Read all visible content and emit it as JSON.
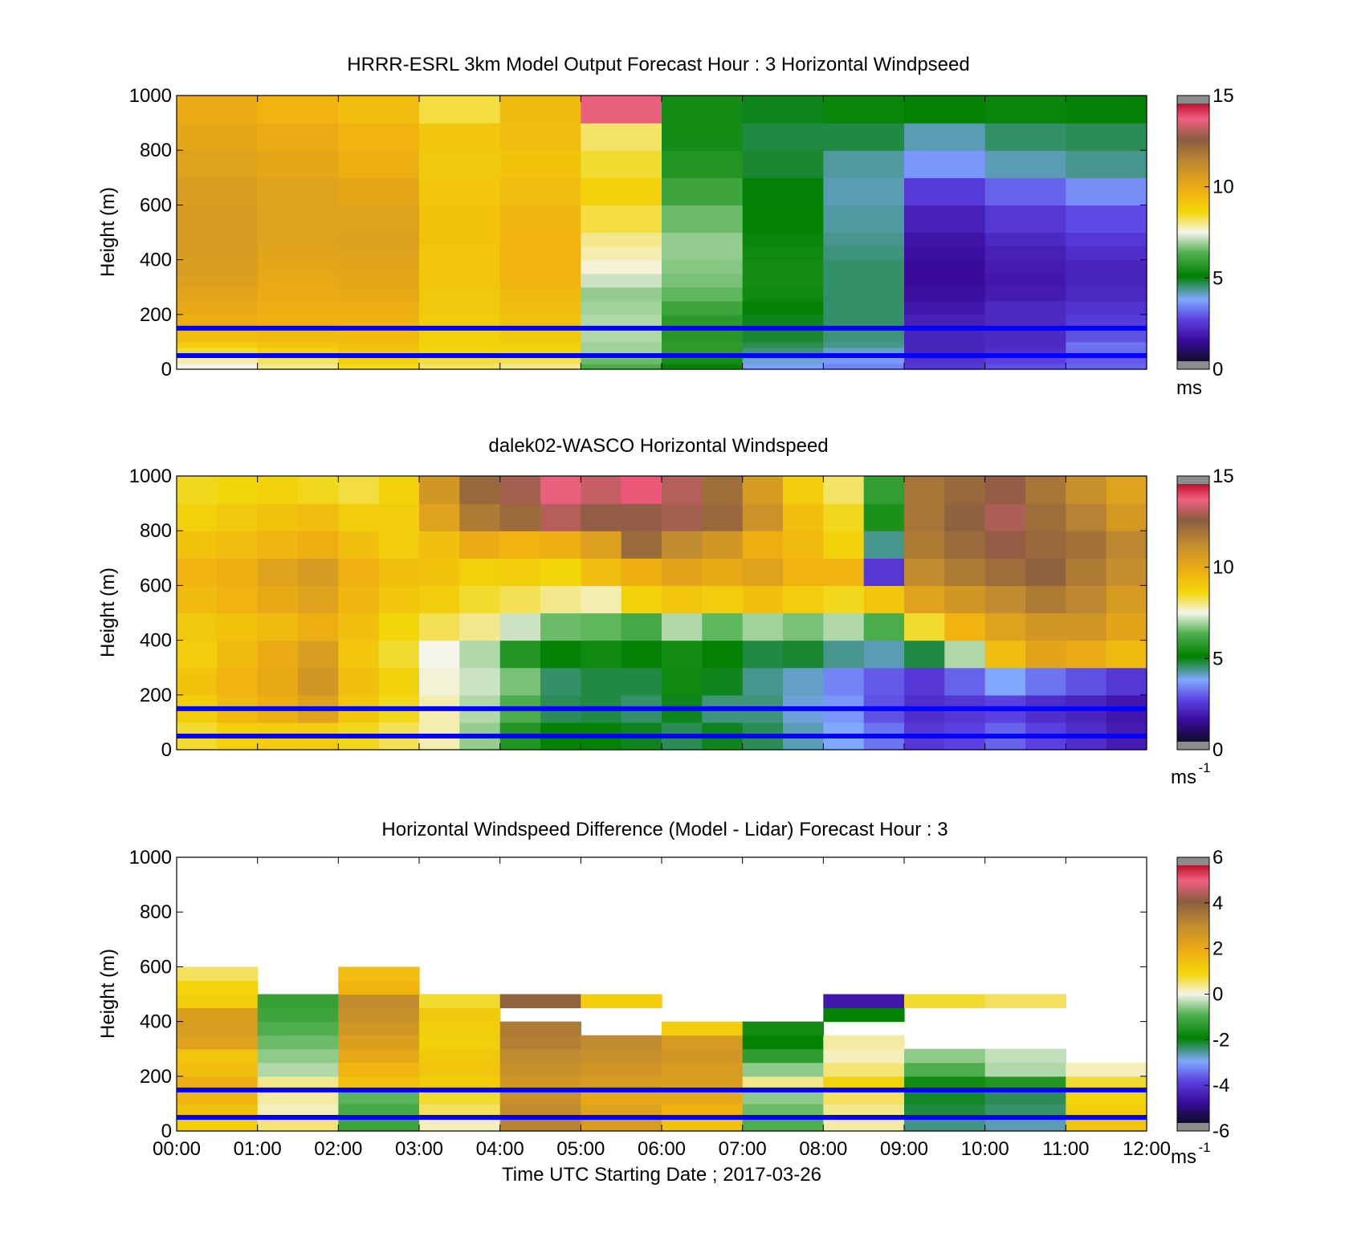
{
  "figure": {
    "xlabel": "Time UTC  Starting Date ; 2017-03-26",
    "x_ticks": [
      "00:00",
      "01:00",
      "02:00",
      "03:00",
      "04:00",
      "05:00",
      "06:00",
      "07:00",
      "08:00",
      "09:00",
      "10:00",
      "11:00",
      "12:00"
    ],
    "y_ticks": [
      "0",
      "200",
      "400",
      "600",
      "800",
      "1000"
    ],
    "y_label": "Height (m)",
    "reference_lines_height_m": [
      50,
      150
    ],
    "reference_line_color": "#0000ff"
  },
  "chart_data": [
    {
      "id": "model",
      "type": "heatmap",
      "title": "HRRR-ESRL 3km Model Output   Forecast Hour : 3 Horizontal Windpseed",
      "ylabel": "Height (m)",
      "xlim": [
        0,
        12
      ],
      "ylim": [
        0,
        1000
      ],
      "colorbar": {
        "ticks": [
          "0",
          "5",
          "10",
          "15"
        ],
        "range": [
          0,
          15
        ],
        "unit": "ms"
      },
      "x_hours": [
        0,
        1,
        2,
        3,
        4,
        5,
        6,
        7,
        8,
        9,
        10,
        11,
        12
      ],
      "levels_m": [
        0,
        20,
        40,
        60,
        80,
        100,
        150,
        200,
        250,
        300,
        350,
        400,
        450,
        500,
        600,
        700,
        800,
        900,
        1000
      ],
      "values": [
        [
          7.5,
          8.0,
          8.6,
          8.2,
          8.0,
          6.2,
          5.0,
          3.5,
          3.2,
          2.2,
          2.6,
          2.8
        ],
        [
          7.8,
          8.2,
          8.9,
          8.4,
          8.3,
          6.5,
          5.3,
          3.8,
          3.4,
          2.1,
          2.4,
          2.7
        ],
        [
          8.0,
          8.4,
          9.0,
          8.5,
          8.5,
          6.7,
          5.6,
          4.1,
          3.6,
          1.9,
          2.2,
          2.6
        ],
        [
          8.5,
          8.8,
          9.2,
          8.7,
          8.7,
          6.9,
          5.7,
          4.3,
          3.9,
          1.8,
          2.0,
          2.9
        ],
        [
          9.0,
          9.2,
          9.4,
          8.8,
          8.9,
          6.9,
          5.7,
          4.5,
          4.2,
          1.8,
          1.9,
          3.0
        ],
        [
          9.5,
          9.6,
          9.6,
          8.9,
          9.1,
          7.0,
          5.6,
          4.7,
          4.3,
          1.8,
          1.9,
          2.6
        ],
        [
          10.0,
          9.9,
          9.8,
          9.0,
          9.3,
          7.0,
          5.7,
          4.8,
          4.4,
          1.7,
          1.9,
          2.3
        ],
        [
          10.2,
          10.0,
          10.0,
          9.1,
          9.5,
          6.9,
          6.0,
          5.0,
          4.4,
          1.5,
          1.9,
          2.1
        ],
        [
          10.4,
          10.1,
          10.2,
          9.1,
          9.6,
          6.8,
          6.4,
          5.2,
          4.4,
          1.3,
          1.6,
          1.9
        ],
        [
          10.6,
          10.2,
          10.3,
          9.2,
          9.7,
          7.2,
          6.6,
          5.3,
          4.4,
          1.2,
          1.5,
          1.8
        ],
        [
          10.7,
          10.3,
          10.4,
          9.2,
          9.8,
          7.6,
          6.7,
          5.3,
          4.4,
          1.2,
          1.6,
          1.8
        ],
        [
          10.8,
          10.4,
          10.5,
          9.2,
          9.8,
          7.8,
          6.8,
          5.2,
          4.3,
          1.3,
          1.7,
          2.0
        ],
        [
          10.8,
          10.5,
          10.6,
          9.3,
          9.8,
          8.0,
          6.8,
          5.1,
          4.2,
          1.4,
          1.9,
          2.2
        ],
        [
          10.8,
          10.5,
          10.5,
          9.3,
          9.7,
          8.4,
          6.5,
          5.0,
          4.1,
          1.7,
          2.2,
          2.5
        ],
        [
          10.7,
          10.5,
          10.3,
          9.2,
          9.5,
          8.8,
          6.0,
          4.9,
          4.0,
          2.3,
          2.8,
          3.3
        ],
        [
          10.5,
          10.3,
          10.0,
          9.1,
          9.3,
          8.5,
          5.5,
          4.7,
          4.1,
          3.4,
          4.0,
          4.2
        ],
        [
          10.3,
          10.1,
          9.8,
          9.2,
          9.5,
          8.2,
          5.3,
          4.6,
          4.6,
          4.0,
          4.4,
          4.5
        ],
        [
          10.1,
          9.8,
          9.5,
          8.4,
          9.6,
          14.0,
          5.3,
          4.8,
          5.1,
          5.0,
          5.1,
          4.9
        ]
      ]
    },
    {
      "id": "lidar",
      "type": "heatmap",
      "title": "dalek02-WASCO  Horizontal Windspeed",
      "ylabel": "Height (m)",
      "xlim": [
        0,
        12
      ],
      "ylim": [
        0,
        1000
      ],
      "colorbar": {
        "ticks": [
          "0",
          "5",
          "10",
          "15"
        ],
        "range": [
          0,
          15
        ],
        "unit": "ms",
        "unit_exponent": "-1"
      },
      "x_hours": [
        0,
        0.5,
        1,
        1.5,
        2,
        2.5,
        3,
        3.5,
        4,
        4.5,
        5,
        5.5,
        6,
        6.5,
        7,
        7.5,
        8,
        8.5,
        9,
        9.5,
        10,
        10.5,
        11,
        11.5,
        12
      ],
      "levels_m": [
        0,
        100,
        200,
        300,
        400,
        500,
        600,
        700,
        800,
        900,
        1000
      ],
      "values": [
        [
          8.5,
          8.9,
          9.0,
          9.0,
          8.6,
          8.3,
          7.8,
          6.8,
          5.5,
          5.0,
          5.0,
          4.8,
          4.5,
          4.8,
          4.5,
          4.0,
          3.6,
          3.0,
          2.2,
          2.4,
          2.8,
          2.4,
          2.0,
          1.6
        ],
        [
          9.0,
          9.6,
          10.0,
          10.5,
          9.2,
          8.6,
          7.8,
          7.0,
          6.2,
          4.5,
          4.6,
          4.4,
          4.8,
          4.3,
          4.3,
          3.8,
          3.4,
          2.6,
          2.0,
          2.2,
          2.4,
          2.0,
          1.8,
          1.5
        ],
        [
          9.3,
          9.8,
          10.2,
          11.0,
          9.4,
          8.8,
          7.6,
          7.2,
          6.6,
          4.4,
          4.6,
          4.6,
          5.2,
          4.8,
          4.2,
          3.9,
          3.2,
          2.7,
          2.2,
          2.8,
          3.6,
          3.0,
          2.6,
          2.2
        ],
        [
          9.0,
          9.6,
          10.1,
          10.7,
          9.2,
          8.5,
          7.5,
          7.0,
          5.5,
          5.0,
          5.2,
          5.0,
          5.3,
          5.0,
          4.6,
          4.7,
          4.2,
          4.0,
          4.6,
          7.0,
          9.5,
          10.4,
          10.1,
          9.6
        ],
        [
          9.1,
          9.3,
          9.6,
          10.0,
          9.4,
          8.7,
          8.3,
          8.0,
          7.2,
          6.5,
          6.4,
          6.1,
          7.0,
          6.4,
          6.9,
          6.6,
          7.0,
          6.2,
          8.5,
          9.8,
          10.5,
          11.0,
          11.0,
          10.4
        ],
        [
          9.6,
          9.8,
          10.2,
          10.5,
          9.7,
          9.2,
          9.0,
          8.5,
          8.3,
          8.0,
          7.8,
          8.8,
          9.2,
          9.0,
          9.4,
          9.0,
          8.6,
          9.2,
          10.5,
          11.0,
          11.5,
          12.0,
          11.6,
          10.8
        ],
        [
          9.8,
          10.0,
          10.5,
          10.8,
          9.9,
          9.4,
          9.3,
          8.9,
          9.0,
          8.7,
          9.5,
          10.0,
          10.4,
          10.2,
          10.5,
          9.8,
          9.8,
          2.2,
          11.5,
          12.0,
          12.4,
          12.8,
          12.0,
          11.4
        ],
        [
          9.3,
          9.5,
          9.7,
          10.0,
          9.4,
          9.0,
          9.4,
          10.1,
          9.8,
          10.0,
          10.6,
          12.5,
          11.5,
          11.0,
          10.0,
          9.6,
          8.8,
          4.2,
          12.0,
          12.5,
          13.0,
          12.6,
          12.3,
          11.6
        ],
        [
          8.9,
          9.1,
          9.3,
          9.5,
          9.0,
          9.0,
          10.5,
          12.0,
          12.5,
          13.4,
          13.0,
          13.0,
          13.2,
          12.6,
          11.2,
          9.4,
          8.6,
          5.4,
          12.2,
          12.8,
          13.3,
          12.4,
          11.8,
          10.9
        ],
        [
          8.6,
          8.7,
          8.8,
          8.6,
          8.4,
          8.8,
          11.0,
          12.6,
          13.2,
          14.0,
          13.6,
          14.2,
          13.4,
          12.4,
          10.8,
          9.0,
          8.2,
          5.8,
          12.2,
          12.6,
          13.0,
          12.2,
          11.3,
          10.5
        ]
      ]
    },
    {
      "id": "difference",
      "type": "heatmap",
      "title": "Horizontal Windspeed Difference (Model - Lidar) Forecast Hour : 3",
      "xlabel": "Time UTC  Starting Date ; 2017-03-26",
      "ylabel": "Height (m)",
      "xlim": [
        0,
        12
      ],
      "ylim": [
        0,
        1000
      ],
      "colorbar": {
        "ticks": [
          "-6",
          "-4",
          "-2",
          "0",
          "2",
          "4",
          "6"
        ],
        "range": [
          -6,
          6
        ],
        "unit": "ms",
        "unit_exponent": "-1"
      },
      "x_hours": [
        0,
        1,
        2,
        3,
        4,
        5,
        6,
        7,
        8,
        9,
        10,
        11,
        12
      ],
      "levels_m": [
        0,
        50,
        100,
        150,
        200,
        250,
        300,
        350,
        400,
        450,
        500,
        550,
        600
      ],
      "values": [
        [
          1.2,
          0.5,
          -1.2,
          0.2,
          3.4,
          2.6,
          1.5,
          -1.0,
          0.3,
          -2.6,
          -2.8,
          1.4
        ],
        [
          1.5,
          0.2,
          -1.1,
          0.6,
          3.2,
          2.4,
          1.9,
          -0.8,
          0.4,
          -2.3,
          -2.5,
          1.2
        ],
        [
          1.8,
          0.3,
          -0.9,
          0.8,
          3.0,
          2.2,
          2.2,
          -0.6,
          0.6,
          -2.2,
          -2.4,
          1.0
        ],
        [
          2.0,
          0.4,
          1.5,
          1.2,
          2.8,
          2.6,
          2.5,
          0.4,
          1.0,
          -1.8,
          -1.6,
          0.8
        ],
        [
          1.6,
          -0.4,
          1.8,
          1.4,
          3.0,
          2.8,
          2.6,
          -0.6,
          0.5,
          -1.0,
          -0.4,
          0.2
        ],
        [
          1.4,
          -0.6,
          2.2,
          1.3,
          3.2,
          3.0,
          2.8,
          -1.4,
          0.2,
          -0.6,
          -0.3,
          null
        ],
        [
          2.4,
          -0.8,
          2.5,
          1.1,
          3.5,
          3.2,
          2.7,
          -2.0,
          0.3,
          null,
          null,
          null
        ],
        [
          2.6,
          -1.0,
          2.8,
          1.2,
          3.6,
          null,
          1.2,
          -1.8,
          null,
          null,
          null,
          null
        ],
        [
          2.5,
          -1.2,
          3.0,
          1.3,
          null,
          null,
          null,
          null,
          -2.0,
          null,
          null,
          null
        ],
        [
          1.2,
          -1.3,
          3.2,
          0.8,
          4.2,
          1.2,
          null,
          null,
          -4.8,
          0.8,
          0.6,
          null
        ],
        [
          1.0,
          null,
          1.8,
          null,
          null,
          null,
          null,
          null,
          null,
          null,
          null,
          null
        ],
        [
          0.6,
          null,
          1.6,
          null,
          null,
          null,
          null,
          null,
          null,
          null,
          null,
          null
        ]
      ]
    }
  ]
}
